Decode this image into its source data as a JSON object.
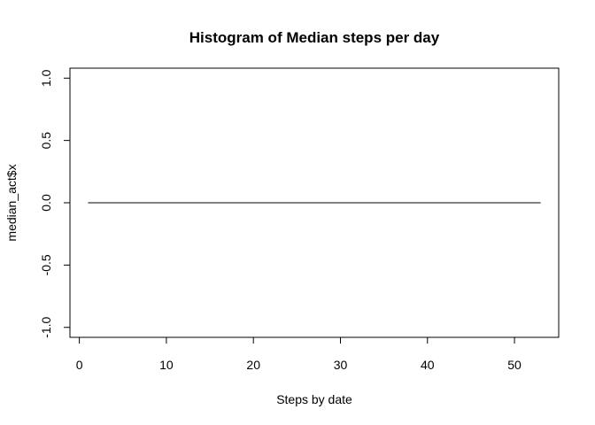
{
  "chart_data": {
    "type": "line",
    "title": "Histogram of Median steps per day",
    "xlabel": "Steps by date",
    "ylabel": "median_act$x",
    "x": [
      1,
      53
    ],
    "series": [
      {
        "name": "median_act$x",
        "values": [
          0,
          0
        ]
      }
    ],
    "xlim": [
      -1.08,
      55.08
    ],
    "ylim": [
      -1.08,
      1.08
    ],
    "xticks": [
      0,
      10,
      20,
      30,
      40,
      50
    ],
    "xtick_labels": [
      "0",
      "10",
      "20",
      "30",
      "40",
      "50"
    ],
    "yticks": [
      -1.0,
      -0.5,
      0.0,
      0.5,
      1.0
    ],
    "ytick_labels": [
      "-1.0",
      "-0.5",
      "0.0",
      "0.5",
      "1.0"
    ],
    "grid": false,
    "line_color": "#000000"
  }
}
